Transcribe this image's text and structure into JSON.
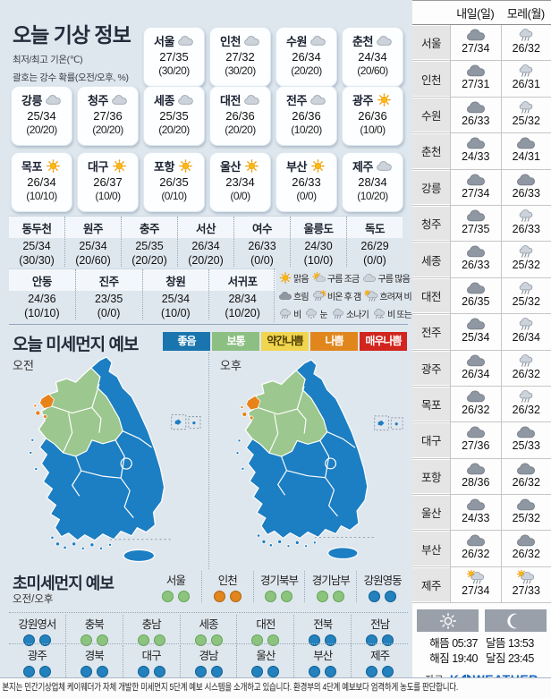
{
  "today": {
    "title": "오늘 기상 정보",
    "subtitle1": "최저/최고 기온(℃)",
    "subtitle2": "괄호는 강수 확률(오전/오후, %)",
    "cards_row1": [
      {
        "city": "서울",
        "icon": "cloud",
        "temp": "27/35",
        "prob": "(30/20)"
      },
      {
        "city": "인천",
        "icon": "cloud",
        "temp": "27/32",
        "prob": "(30/20)"
      },
      {
        "city": "수원",
        "icon": "cloud",
        "temp": "26/34",
        "prob": "(20/20)"
      },
      {
        "city": "춘천",
        "icon": "cloud",
        "temp": "24/34",
        "prob": "(20/60)"
      }
    ],
    "cards_row2": [
      {
        "city": "강릉",
        "icon": "cloud",
        "temp": "25/34",
        "prob": "(20/20)"
      },
      {
        "city": "청주",
        "icon": "cloud",
        "temp": "27/36",
        "prob": "(20/20)"
      },
      {
        "city": "세종",
        "icon": "cloud",
        "temp": "25/35",
        "prob": "(20/20)"
      },
      {
        "city": "대전",
        "icon": "cloud",
        "temp": "26/36",
        "prob": "(20/20)"
      },
      {
        "city": "전주",
        "icon": "cloud",
        "temp": "26/36",
        "prob": "(10/20)"
      },
      {
        "city": "광주",
        "icon": "sun",
        "temp": "26/36",
        "prob": "(10/0)"
      }
    ],
    "cards_row3": [
      {
        "city": "목포",
        "icon": "sun",
        "temp": "26/34",
        "prob": "(10/10)"
      },
      {
        "city": "대구",
        "icon": "sun",
        "temp": "26/37",
        "prob": "(10/0)"
      },
      {
        "city": "포항",
        "icon": "sun",
        "temp": "26/35",
        "prob": "(0/10)"
      },
      {
        "city": "울산",
        "icon": "sun",
        "temp": "23/34",
        "prob": "(0/0)"
      },
      {
        "city": "부산",
        "icon": "sun",
        "temp": "26/33",
        "prob": "(0/0)"
      },
      {
        "city": "제주",
        "icon": "cloud",
        "temp": "28/34",
        "prob": "(10/20)"
      }
    ],
    "table1": [
      {
        "city": "동두천",
        "temp": "25/34",
        "prob": "(30/30)"
      },
      {
        "city": "원주",
        "temp": "25/34",
        "prob": "(20/60)"
      },
      {
        "city": "충주",
        "temp": "25/35",
        "prob": "(20/20)"
      },
      {
        "city": "서산",
        "temp": "26/34",
        "prob": "(20/20)"
      },
      {
        "city": "여수",
        "temp": "26/33",
        "prob": "(0/0)"
      },
      {
        "city": "울릉도",
        "temp": "24/30",
        "prob": "(10/0)"
      },
      {
        "city": "독도",
        "temp": "26/29",
        "prob": "(0/0)"
      }
    ],
    "table2": [
      {
        "city": "안동",
        "temp": "24/36",
        "prob": "(10/10)"
      },
      {
        "city": "진주",
        "temp": "23/35",
        "prob": "(0/0)"
      },
      {
        "city": "창원",
        "temp": "25/34",
        "prob": "(10/0)"
      },
      {
        "city": "서귀포",
        "temp": "28/34",
        "prob": "(10/20)"
      }
    ],
    "legend_rows": [
      [
        {
          "icon": "sun",
          "label": "맑음"
        },
        {
          "icon": "sun-cloud",
          "label": "구름 조금"
        },
        {
          "icon": "cloud",
          "label": "구름 많음"
        }
      ],
      [
        {
          "icon": "cloud-dark",
          "label": "흐림"
        },
        {
          "icon": "rain-sun",
          "label": "비온 후 갬"
        },
        {
          "icon": "sun-rain",
          "label": "흐려져 비"
        }
      ],
      [
        {
          "icon": "rain",
          "label": "비"
        },
        {
          "icon": "snow",
          "label": "눈"
        },
        {
          "icon": "shower",
          "label": "소나기"
        },
        {
          "icon": "rain-snow",
          "label": "비 또는 눈"
        }
      ]
    ]
  },
  "dust": {
    "title": "오늘 미세먼지 예보",
    "levels": [
      {
        "label": "좋음",
        "color": "#1a75ae",
        "text": "#ffffff"
      },
      {
        "label": "보통",
        "color": "#8cc083",
        "text": "#ffffff"
      },
      {
        "label": "약간나쁨",
        "color": "#f1d54e",
        "text": "#4a3b00"
      },
      {
        "label": "나쁨",
        "color": "#e0861c",
        "text": "#ffffff"
      },
      {
        "label": "매우나쁨",
        "color": "#d2251e",
        "text": "#ffffff"
      }
    ],
    "maps": [
      {
        "label": "오전"
      },
      {
        "label": "오후"
      }
    ],
    "map_colors": {
      "good": "#1c7ec3",
      "normal": "#9cc78e",
      "bad": "#e8831a"
    }
  },
  "ultrafine": {
    "title": "초미세먼지 예보",
    "sublabel": "오전/오후",
    "row1": [
      {
        "name": "서울",
        "am": "green",
        "pm": "green"
      },
      {
        "name": "인천",
        "am": "orange",
        "pm": "orange"
      },
      {
        "name": "경기북부",
        "am": "green",
        "pm": "green"
      },
      {
        "name": "경기남부",
        "am": "green",
        "pm": "green"
      },
      {
        "name": "강원영동",
        "am": "blue",
        "pm": "blue"
      }
    ],
    "row2": [
      {
        "name": "강원영서",
        "am": "blue",
        "pm": "blue"
      },
      {
        "name": "충북",
        "am": "green",
        "pm": "green"
      },
      {
        "name": "충남",
        "am": "green",
        "pm": "green"
      },
      {
        "name": "세종",
        "am": "green",
        "pm": "green"
      },
      {
        "name": "대전",
        "am": "green",
        "pm": "green"
      },
      {
        "name": "전북",
        "am": "blue",
        "pm": "blue"
      },
      {
        "name": "전남",
        "am": "blue",
        "pm": "blue"
      }
    ],
    "row3": [
      {
        "name": "광주",
        "am": "blue",
        "pm": "blue"
      },
      {
        "name": "경북",
        "am": "blue",
        "pm": "blue"
      },
      {
        "name": "대구",
        "am": "blue",
        "pm": "blue"
      },
      {
        "name": "경남",
        "am": "blue",
        "pm": "blue"
      },
      {
        "name": "울산",
        "am": "blue",
        "pm": "blue"
      },
      {
        "name": "부산",
        "am": "blue",
        "pm": "blue"
      },
      {
        "name": "제주",
        "am": "blue",
        "pm": "blue"
      }
    ],
    "dot_colors": {
      "green": {
        "bg": "#8cc47d",
        "border": "#64a457"
      },
      "blue": {
        "bg": "#2381bd",
        "border": "#0d5f94"
      },
      "orange": {
        "bg": "#e1861d",
        "border": "#ad6410"
      }
    }
  },
  "tomorrow": {
    "col1": "내일(일)",
    "col2": "모레(월)",
    "rows": [
      {
        "city": "서울",
        "icon1": "cloud-dark",
        "temp1": "27/34",
        "icon2": "rain",
        "temp2": "26/32"
      },
      {
        "city": "인천",
        "icon1": "cloud-dark",
        "temp1": "27/31",
        "icon2": "rain",
        "temp2": "26/31"
      },
      {
        "city": "수원",
        "icon1": "cloud-dark",
        "temp1": "26/33",
        "icon2": "rain",
        "temp2": "25/32"
      },
      {
        "city": "춘천",
        "icon1": "cloud-dark",
        "temp1": "24/33",
        "icon2": "cloud-dark",
        "temp2": "24/31"
      },
      {
        "city": "강릉",
        "icon1": "cloud-dark",
        "temp1": "27/34",
        "icon2": "cloud-dark",
        "temp2": "26/33"
      },
      {
        "city": "청주",
        "icon1": "cloud-dark",
        "temp1": "27/35",
        "icon2": "rain",
        "temp2": "26/33"
      },
      {
        "city": "세종",
        "icon1": "cloud-dark",
        "temp1": "26/33",
        "icon2": "rain",
        "temp2": "25/32"
      },
      {
        "city": "대전",
        "icon1": "cloud-dark",
        "temp1": "26/35",
        "icon2": "rain",
        "temp2": "25/32"
      },
      {
        "city": "전주",
        "icon1": "cloud-dark",
        "temp1": "25/34",
        "icon2": "rain",
        "temp2": "26/34"
      },
      {
        "city": "광주",
        "icon1": "cloud-dark",
        "temp1": "26/34",
        "icon2": "rain",
        "temp2": "26/32"
      },
      {
        "city": "목포",
        "icon1": "cloud-dark",
        "temp1": "26/32",
        "icon2": "rain",
        "temp2": "26/32"
      },
      {
        "city": "대구",
        "icon1": "cloud-dark",
        "temp1": "27/36",
        "icon2": "cloud-dark",
        "temp2": "25/33"
      },
      {
        "city": "포항",
        "icon1": "cloud-dark",
        "temp1": "28/36",
        "icon2": "cloud-dark",
        "temp2": "26/32"
      },
      {
        "city": "울산",
        "icon1": "cloud-dark",
        "temp1": "24/33",
        "icon2": "cloud-dark",
        "temp2": "25/32"
      },
      {
        "city": "부산",
        "icon1": "cloud-dark",
        "temp1": "26/32",
        "icon2": "cloud-dark",
        "temp2": "26/32"
      },
      {
        "city": "제주",
        "icon1": "sun-rain",
        "temp1": "27/34",
        "icon2": "sun-rain",
        "temp2": "27/33"
      }
    ]
  },
  "sun_moon": {
    "sunrise_label": "해뜸",
    "sunrise": "05:37",
    "moonrise_label": "달뜸",
    "moonrise": "13:53",
    "sunset_label": "해짐",
    "sunset": "19:40",
    "moonset_label": "달짐",
    "moonset": "23:45",
    "source_label": "자료=",
    "brand_k": "K",
    "brand_weather": "WEATHER"
  },
  "footer": {
    "note": "본지는 민간기상업체 케이웨더가 자체 개발한 미세먼지 5단계 예보 시스템을 소개하고 있습니다. 환경부의 4단계 예보보다 엄격하게 농도를 판단합니다."
  }
}
